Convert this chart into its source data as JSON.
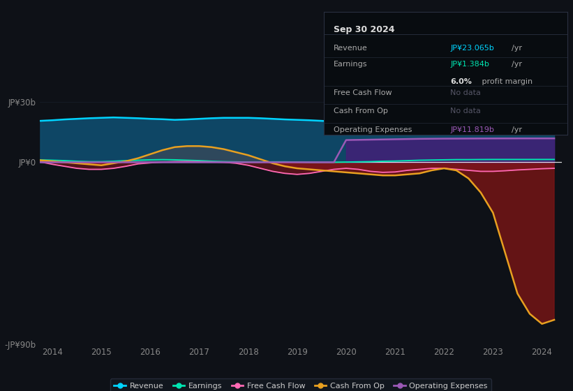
{
  "background_color": "#0e1117",
  "plot_bg_color": "#0e1117",
  "years": [
    2013.75,
    2014.0,
    2014.25,
    2014.5,
    2014.75,
    2015.0,
    2015.25,
    2015.5,
    2015.75,
    2016.0,
    2016.25,
    2016.5,
    2016.75,
    2017.0,
    2017.25,
    2017.5,
    2017.75,
    2018.0,
    2018.25,
    2018.5,
    2018.75,
    2019.0,
    2019.25,
    2019.5,
    2019.75,
    2020.0,
    2020.25,
    2020.5,
    2020.75,
    2021.0,
    2021.25,
    2021.5,
    2021.75,
    2022.0,
    2022.25,
    2022.5,
    2022.75,
    2023.0,
    2023.25,
    2023.5,
    2023.75,
    2024.0,
    2024.25
  ],
  "revenue": [
    20.5,
    20.8,
    21.2,
    21.5,
    21.8,
    22.0,
    22.2,
    22.0,
    21.8,
    21.5,
    21.3,
    21.0,
    21.2,
    21.5,
    21.8,
    22.0,
    22.0,
    22.0,
    21.8,
    21.5,
    21.2,
    21.0,
    20.8,
    20.5,
    20.2,
    20.0,
    20.0,
    20.2,
    20.5,
    20.8,
    21.0,
    21.2,
    21.5,
    21.8,
    22.0,
    22.2,
    22.5,
    22.8,
    23.0,
    23.1,
    23.0,
    23.0,
    23.065
  ],
  "earnings": [
    1.2,
    1.0,
    0.8,
    0.5,
    0.3,
    0.3,
    0.5,
    0.8,
    1.0,
    1.2,
    1.3,
    1.2,
    1.0,
    0.8,
    0.5,
    0.3,
    0.2,
    0.1,
    0.1,
    0.2,
    0.2,
    0.1,
    0.0,
    0.0,
    0.0,
    0.1,
    0.2,
    0.3,
    0.5,
    0.6,
    0.8,
    1.0,
    1.1,
    1.2,
    1.3,
    1.3,
    1.35,
    1.38,
    1.38,
    1.38,
    1.38,
    1.384,
    1.384
  ],
  "free_cash_flow": [
    0.2,
    -1.0,
    -2.0,
    -3.0,
    -3.5,
    -3.5,
    -3.0,
    -2.0,
    -0.8,
    -0.3,
    0.1,
    0.3,
    0.4,
    0.3,
    0.2,
    0.0,
    -0.5,
    -1.5,
    -3.0,
    -4.5,
    -5.5,
    -6.0,
    -5.5,
    -4.5,
    -3.5,
    -3.0,
    -3.5,
    -4.5,
    -5.0,
    -4.8,
    -4.0,
    -3.5,
    -3.0,
    -3.0,
    -3.5,
    -4.0,
    -4.5,
    -4.5,
    -4.2,
    -3.8,
    -3.5,
    -3.2,
    -3.0
  ],
  "cash_from_op": [
    1.0,
    0.5,
    0.0,
    -0.5,
    -1.0,
    -1.5,
    -0.5,
    0.5,
    2.0,
    4.0,
    6.0,
    7.5,
    8.0,
    8.0,
    7.5,
    6.5,
    5.0,
    3.5,
    1.5,
    -0.5,
    -2.0,
    -3.0,
    -3.5,
    -4.0,
    -4.5,
    -5.0,
    -5.5,
    -6.0,
    -6.5,
    -6.5,
    -6.0,
    -5.5,
    -4.0,
    -3.0,
    -4.0,
    -8.0,
    -15.0,
    -25.0,
    -45.0,
    -65.0,
    -75.0,
    -80.0,
    -78.0
  ],
  "operating_expenses": [
    0,
    0,
    0,
    0,
    0,
    0,
    0,
    0,
    0,
    0,
    0,
    0,
    0,
    0,
    0,
    0,
    0,
    0,
    0,
    0,
    0,
    0,
    0,
    0,
    0,
    11.0,
    11.1,
    11.2,
    11.3,
    11.4,
    11.5,
    11.6,
    11.65,
    11.7,
    11.72,
    11.75,
    11.78,
    11.8,
    11.81,
    11.815,
    11.818,
    11.819,
    11.819
  ],
  "ylim": [
    -90,
    30
  ],
  "xlim": [
    2013.75,
    2024.4
  ],
  "yticks": [
    -90,
    0,
    30
  ],
  "ytick_labels": [
    "-JP¥90b",
    "JP¥0",
    "JP¥30b"
  ],
  "xtick_years": [
    2014,
    2015,
    2016,
    2017,
    2018,
    2019,
    2020,
    2021,
    2022,
    2023,
    2024
  ],
  "revenue_color": "#00d4ff",
  "earnings_color": "#00e5b0",
  "free_cash_flow_color": "#ff69b4",
  "cash_from_op_color": "#e8a020",
  "operating_expenses_color": "#9b59b6",
  "revenue_fill_color": "#0e4d6e",
  "cash_op_pos_fill_color": "#3a4a5a",
  "cash_op_neg_fill_color": "#7a1515",
  "fcf_neg_fill_color": "#8b1520",
  "op_exp_fill_color": "#4a1a7a",
  "zero_line_color": "#ffffff",
  "grid_color": "#1e2a38",
  "info_box": {
    "title": "Sep 30 2024",
    "revenue_label": "Revenue",
    "revenue_value": "JP¥23.065b",
    "revenue_value_color": "#00d4ff",
    "revenue_unit": "/yr",
    "earnings_label": "Earnings",
    "earnings_value": "JP¥1.384b",
    "earnings_value_color": "#00e5b0",
    "earnings_unit": "/yr",
    "profit_margin": "6.0%",
    "profit_margin_label": " profit margin",
    "fcf_label": "Free Cash Flow",
    "fcf_value": "No data",
    "cash_op_label": "Cash From Op",
    "cash_op_value": "No data",
    "opex_label": "Operating Expenses",
    "opex_value": "JP¥11.819b",
    "opex_value_color": "#9b59b6",
    "opex_unit": "/yr",
    "bg_color": "#080c10",
    "border_color": "#2a3040",
    "text_color": "#aaaaaa",
    "nodata_color": "#555566",
    "title_color": "#dddddd"
  },
  "legend_items": [
    {
      "label": "Revenue",
      "color": "#00d4ff"
    },
    {
      "label": "Earnings",
      "color": "#00e5b0"
    },
    {
      "label": "Free Cash Flow",
      "color": "#ff69b4"
    },
    {
      "label": "Cash From Op",
      "color": "#e8a020"
    },
    {
      "label": "Operating Expenses",
      "color": "#9b59b6"
    }
  ]
}
